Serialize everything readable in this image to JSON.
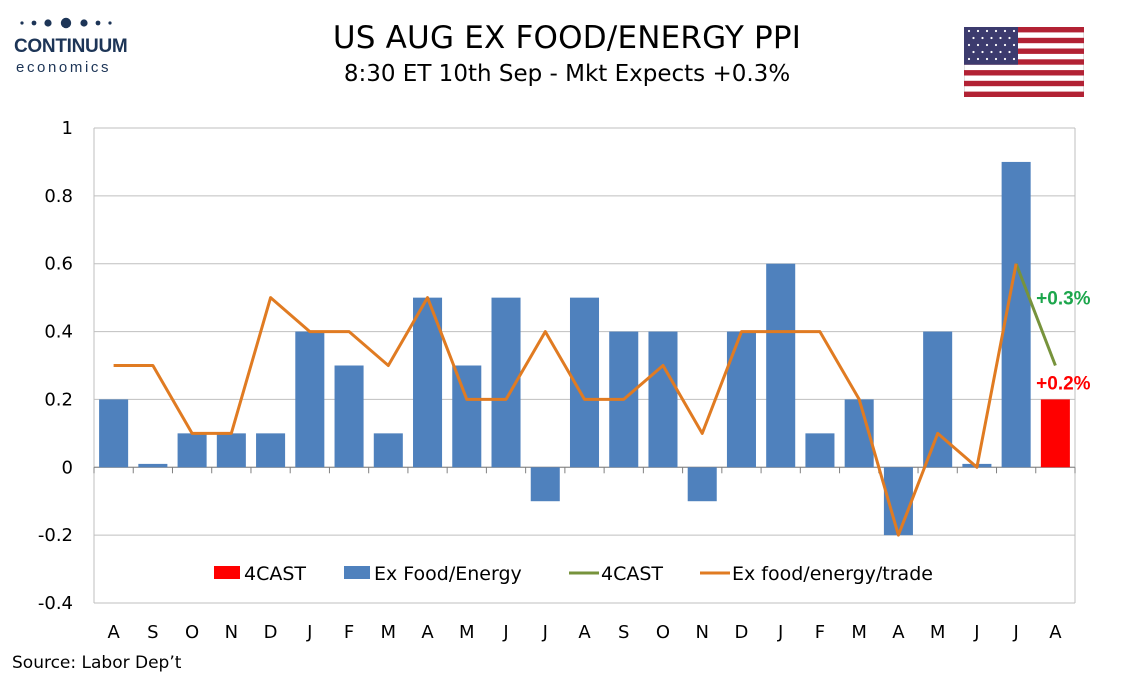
{
  "header": {
    "logo_name": "CONTINUUM",
    "logo_sub": "economics",
    "title": "US AUG EX FOOD/ENERGY PPI",
    "subtitle": "8:30 ET 10th Sep - Mkt Expects +0.3%",
    "flag": "us-flag"
  },
  "colors": {
    "bar": "#4f81bd",
    "forecast_bar": "#ff0000",
    "line_trade": "#e07b22",
    "line_forecast": "#77933c",
    "label_green": "#1ca64c",
    "label_red": "#ff0000",
    "logo": "#1d3557"
  },
  "chart_data": {
    "type": "bar",
    "categories": [
      "A",
      "S",
      "O",
      "N",
      "D",
      "J",
      "F",
      "M",
      "A",
      "M",
      "J",
      "J",
      "A",
      "S",
      "O",
      "N",
      "D",
      "J",
      "F",
      "M",
      "A",
      "M",
      "J",
      "J",
      "A"
    ],
    "series": [
      {
        "name": "4CAST",
        "kind": "bar",
        "values": [
          null,
          null,
          null,
          null,
          null,
          null,
          null,
          null,
          null,
          null,
          null,
          null,
          null,
          null,
          null,
          null,
          null,
          null,
          null,
          null,
          null,
          null,
          null,
          null,
          0.2
        ]
      },
      {
        "name": "Ex Food/Energy",
        "kind": "bar",
        "values": [
          0.2,
          0.01,
          0.1,
          0.1,
          0.1,
          0.4,
          0.3,
          0.1,
          0.5,
          0.3,
          0.5,
          -0.1,
          0.5,
          0.4,
          0.4,
          -0.1,
          0.4,
          0.6,
          0.1,
          0.2,
          -0.2,
          0.4,
          0.01,
          0.9,
          null
        ]
      },
      {
        "name": "4CAST",
        "kind": "line",
        "values": [
          null,
          null,
          null,
          null,
          null,
          null,
          null,
          null,
          null,
          null,
          null,
          null,
          null,
          null,
          null,
          null,
          null,
          null,
          null,
          null,
          null,
          null,
          null,
          0.6,
          0.3
        ]
      },
      {
        "name": "Ex food/energy/trade",
        "kind": "line",
        "values": [
          0.3,
          0.3,
          0.1,
          0.1,
          0.5,
          0.4,
          0.4,
          0.3,
          0.5,
          0.2,
          0.2,
          0.4,
          0.2,
          0.2,
          0.3,
          0.1,
          0.4,
          0.4,
          0.4,
          0.2,
          -0.2,
          0.1,
          0.0,
          0.6,
          null
        ]
      }
    ],
    "annotations": [
      {
        "text": "+0.3%",
        "color": "green",
        "x_index": 24,
        "y": 0.5
      },
      {
        "text": "+0.2%",
        "color": "red",
        "x_index": 24,
        "y": 0.25
      }
    ],
    "ylim": [
      -0.4,
      1
    ],
    "yticks": [
      -0.4,
      -0.2,
      0,
      0.2,
      0.4,
      0.6,
      0.8,
      1
    ],
    "ytick_labels": [
      "-0.4",
      "-0.2",
      "0",
      "0.2",
      "0.4",
      "0.6",
      "0.8",
      "1"
    ],
    "grid": true,
    "legend": {
      "placement": "bottom-inside",
      "entries": [
        "4CAST",
        "Ex Food/Energy",
        "4CAST",
        "Ex food/energy/trade"
      ]
    },
    "source": "Source: Labor Dep’t"
  }
}
